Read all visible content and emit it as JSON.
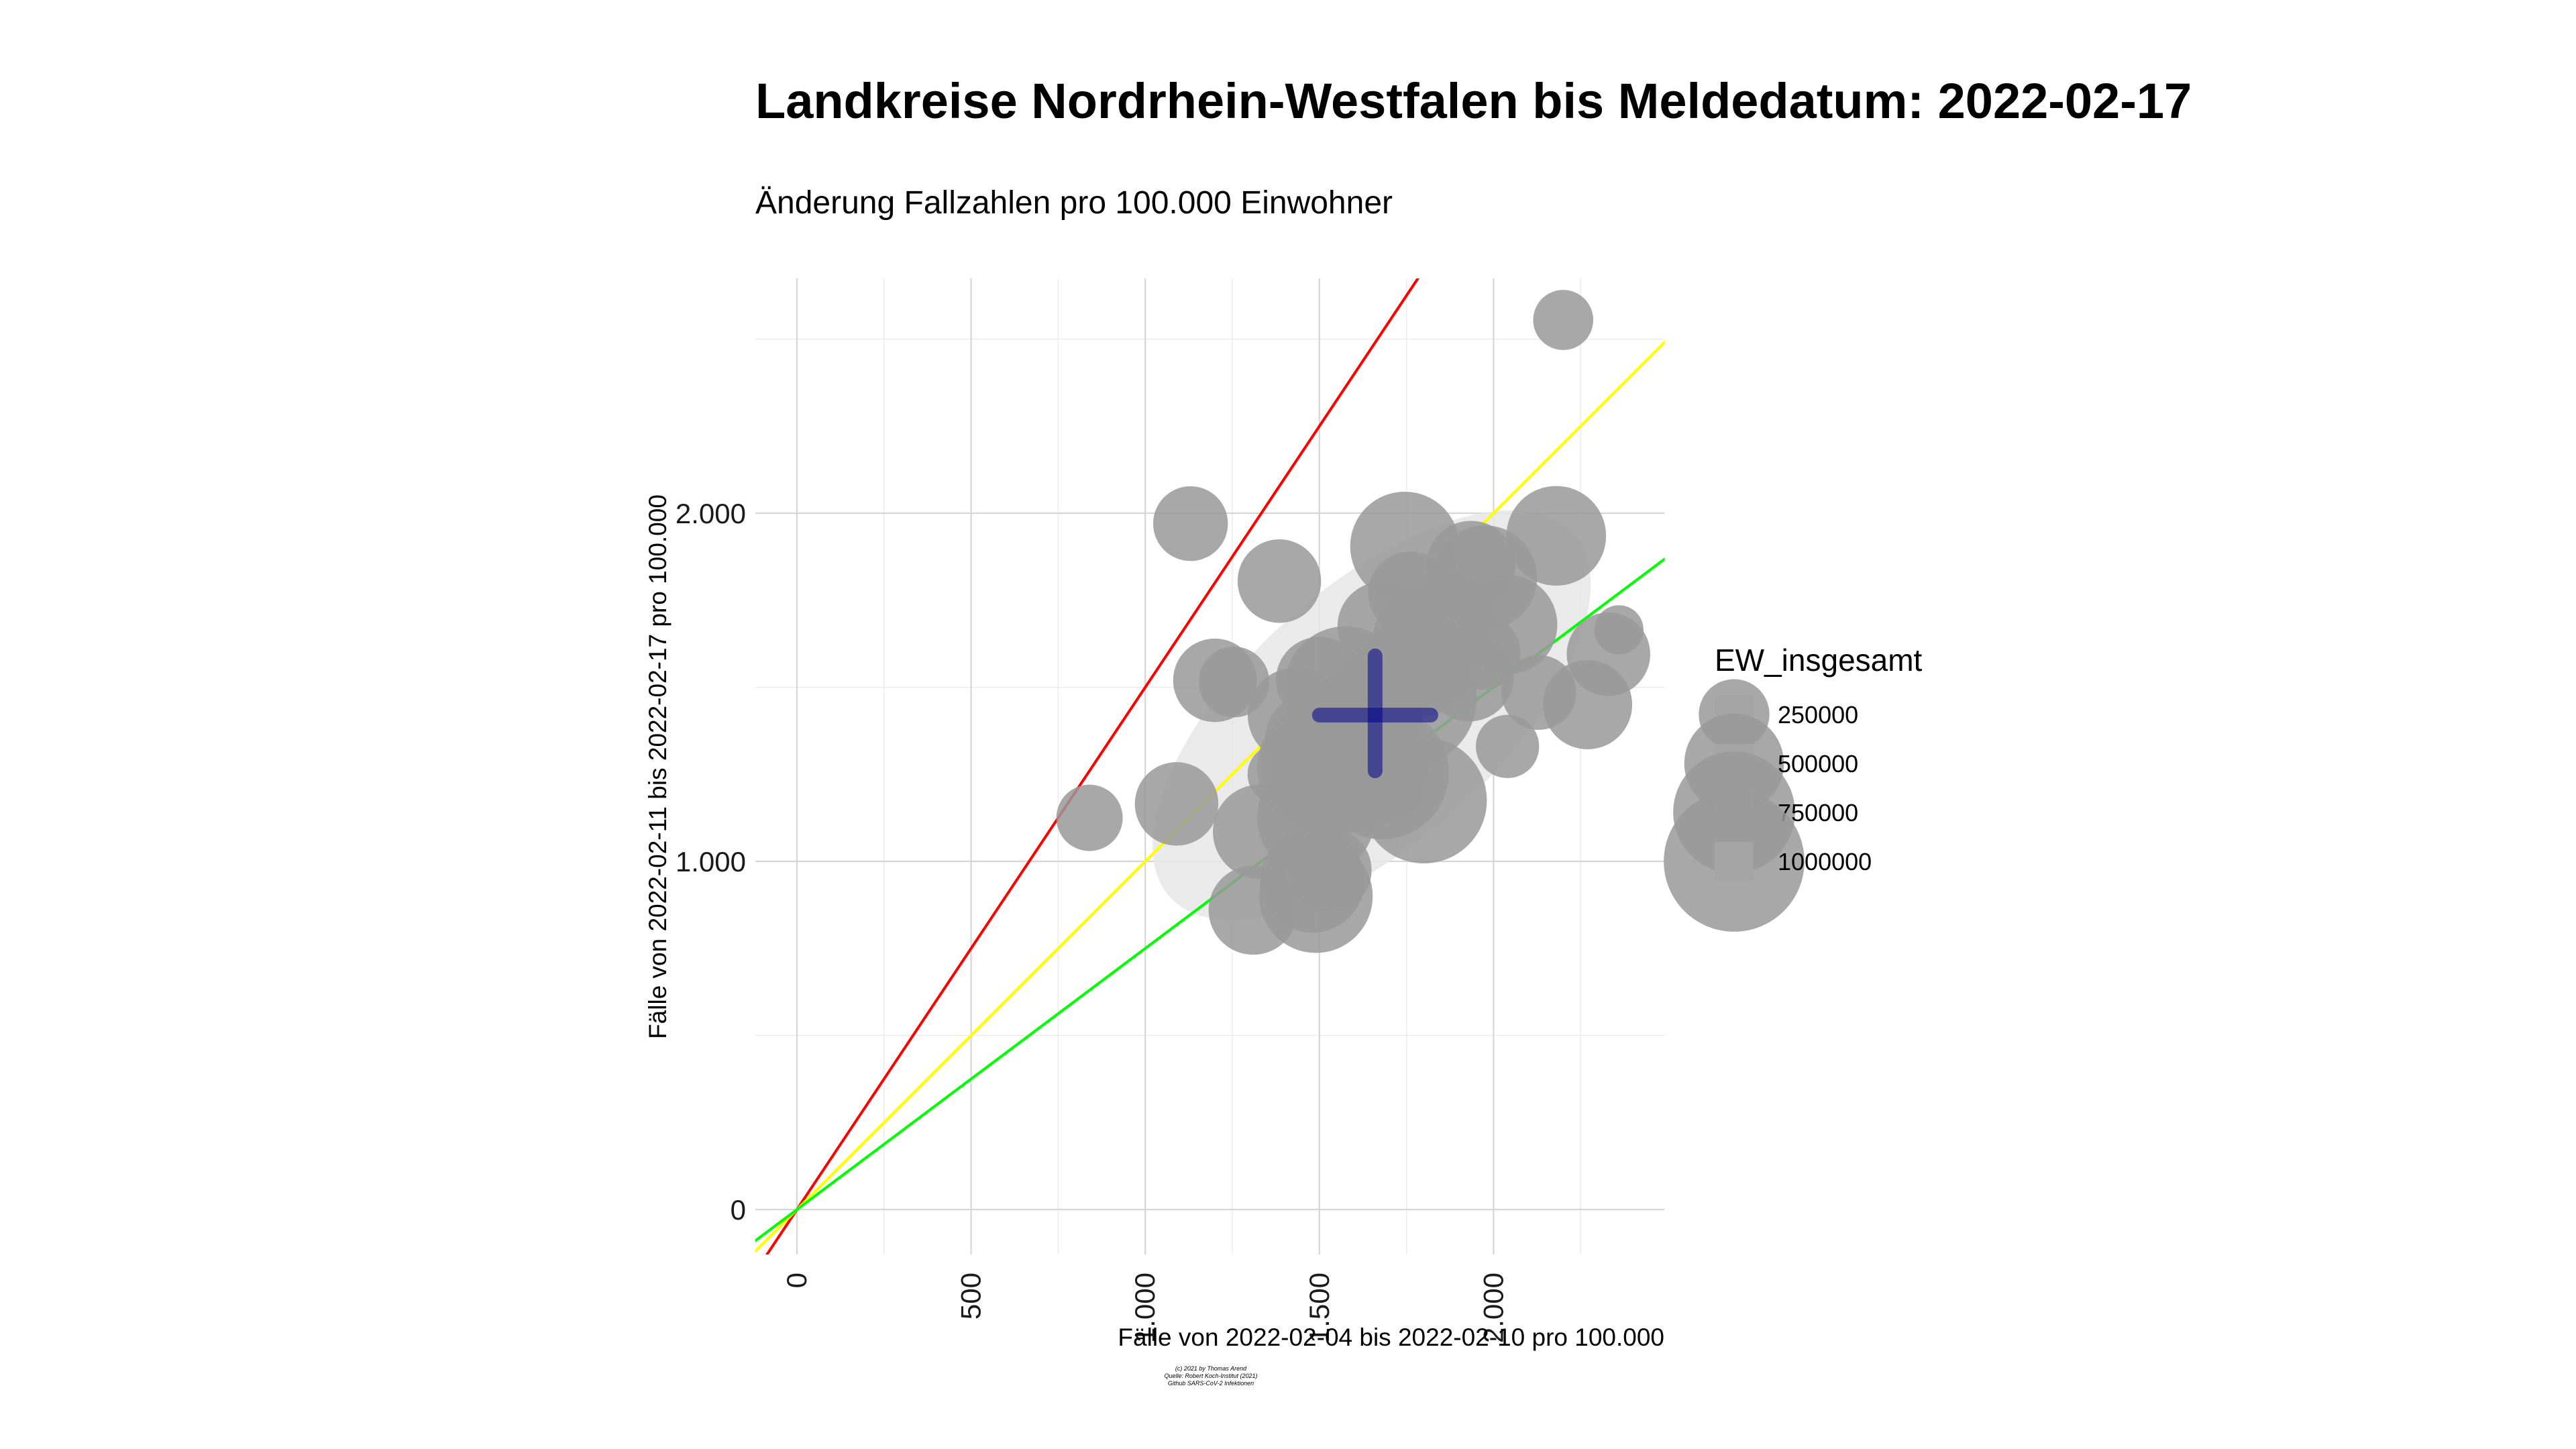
{
  "title": "Landkreise Nordrhein-Westfalen bis Meldedatum: 2022-02-17",
  "subtitle": "Änderung Fallzahlen pro 100.000 Einwohner",
  "credits": [
    "(c) 2021 by Thomas Arend",
    "Quelle: Robert Koch-Institut (2021)",
    "Github SARS-CoV-2 Infektionen"
  ],
  "colors": {
    "red_line": "#ff0000",
    "yellow_line": "#ffff00",
    "green_line": "#00ff00",
    "points": "#999999",
    "ellipse": "#e6e6e6",
    "mean_cross": "#00008b"
  },
  "chart_data": {
    "type": "scatter",
    "xlabel": "Fälle von 2022-02-04 bis 2022-02-10 pro 100.000",
    "ylabel": "Fälle von 2022-02-11 bis 2022-02-17 pro 100.000",
    "xlim": [
      -120,
      2500
    ],
    "ylim": [
      -130,
      2670
    ],
    "x_ticks": [
      0,
      500,
      1000,
      1500,
      2000
    ],
    "x_tick_labels": [
      "0",
      "500",
      "1.000",
      "1.500",
      "2.000"
    ],
    "y_ticks": [
      0,
      1000,
      2000
    ],
    "y_tick_labels": [
      "0",
      "1.000",
      "2.000"
    ],
    "grid": true,
    "reference_lines": [
      {
        "name": "red",
        "slope": 1.5,
        "color": "#ff0000"
      },
      {
        "name": "yellow",
        "slope": 1.0,
        "color": "#ffff00"
      },
      {
        "name": "green",
        "slope": 0.75,
        "color": "#00ff00"
      }
    ],
    "ellipse": {
      "center": [
        1650,
        1420
      ],
      "semi_major": 780,
      "semi_minor": 365,
      "angle_deg": 42
    },
    "mean_cross": {
      "x": 1660,
      "y": 1420,
      "x_extent": [
        1500,
        1820
      ],
      "y_extent": [
        1260,
        1590
      ]
    },
    "legend": {
      "title": "EW_insgesamt",
      "position": "right",
      "entries": [
        {
          "label": "250000",
          "value": 250000
        },
        {
          "label": "500000",
          "value": 500000
        },
        {
          "label": "750000",
          "value": 750000
        },
        {
          "label": "1000000",
          "value": 1000000
        }
      ]
    },
    "points": [
      {
        "x": 2200,
        "y": 2555,
        "size": 180000
      },
      {
        "x": 1130,
        "y": 1970,
        "size": 280000
      },
      {
        "x": 1745,
        "y": 1905,
        "size": 600000
      },
      {
        "x": 2180,
        "y": 1935,
        "size": 500000
      },
      {
        "x": 1935,
        "y": 1850,
        "size": 400000
      },
      {
        "x": 1975,
        "y": 1815,
        "size": 550000
      },
      {
        "x": 1385,
        "y": 1805,
        "size": 350000
      },
      {
        "x": 1760,
        "y": 1770,
        "size": 350000
      },
      {
        "x": 1880,
        "y": 1715,
        "size": 320000
      },
      {
        "x": 2040,
        "y": 1680,
        "size": 500000
      },
      {
        "x": 1680,
        "y": 1675,
        "size": 400000
      },
      {
        "x": 2360,
        "y": 1665,
        "size": 120000
      },
      {
        "x": 1810,
        "y": 1635,
        "size": 600000
      },
      {
        "x": 1785,
        "y": 1620,
        "size": 300000
      },
      {
        "x": 1970,
        "y": 1600,
        "size": 280000
      },
      {
        "x": 2330,
        "y": 1595,
        "size": 350000
      },
      {
        "x": 1790,
        "y": 1565,
        "size": 550000
      },
      {
        "x": 1740,
        "y": 1530,
        "size": 300000
      },
      {
        "x": 1930,
        "y": 1530,
        "size": 400000
      },
      {
        "x": 1200,
        "y": 1520,
        "size": 350000
      },
      {
        "x": 1255,
        "y": 1515,
        "size": 250000
      },
      {
        "x": 1500,
        "y": 1520,
        "size": 380000
      },
      {
        "x": 1575,
        "y": 1500,
        "size": 750000
      },
      {
        "x": 2130,
        "y": 1485,
        "size": 280000
      },
      {
        "x": 1750,
        "y": 1470,
        "size": 1000000
      },
      {
        "x": 2270,
        "y": 1450,
        "size": 400000
      },
      {
        "x": 1430,
        "y": 1420,
        "size": 450000
      },
      {
        "x": 1640,
        "y": 1420,
        "size": 600000
      },
      {
        "x": 1480,
        "y": 1350,
        "size": 450000
      },
      {
        "x": 1510,
        "y": 1330,
        "size": 500000
      },
      {
        "x": 2040,
        "y": 1330,
        "size": 200000
      },
      {
        "x": 1490,
        "y": 1270,
        "size": 700000
      },
      {
        "x": 1540,
        "y": 1260,
        "size": 850000
      },
      {
        "x": 1600,
        "y": 1255,
        "size": 500000
      },
      {
        "x": 1650,
        "y": 1270,
        "size": 650000
      },
      {
        "x": 1680,
        "y": 1255,
        "size": 900000
      },
      {
        "x": 1380,
        "y": 1250,
        "size": 180000
      },
      {
        "x": 1530,
        "y": 1215,
        "size": 450000
      },
      {
        "x": 1730,
        "y": 1210,
        "size": 150000
      },
      {
        "x": 1800,
        "y": 1175,
        "size": 800000
      },
      {
        "x": 1090,
        "y": 1165,
        "size": 350000
      },
      {
        "x": 840,
        "y": 1125,
        "size": 220000
      },
      {
        "x": 1490,
        "y": 1125,
        "size": 700000
      },
      {
        "x": 1330,
        "y": 1085,
        "size": 450000
      },
      {
        "x": 1530,
        "y": 975,
        "size": 350000
      },
      {
        "x": 1480,
        "y": 945,
        "size": 550000
      },
      {
        "x": 1490,
        "y": 900,
        "size": 650000
      },
      {
        "x": 1310,
        "y": 860,
        "size": 400000
      }
    ]
  }
}
